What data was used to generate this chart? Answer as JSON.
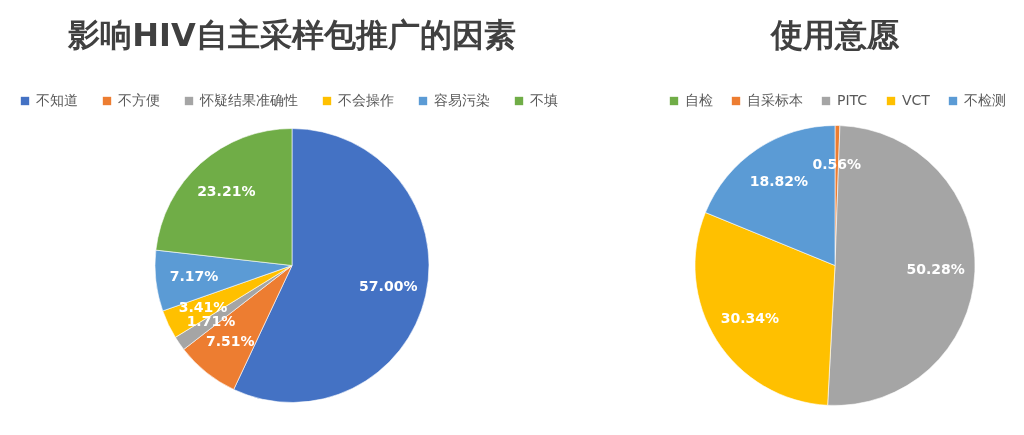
{
  "chart_data": [
    {
      "type": "pie",
      "title": "影响HIV自主采样包推广的因素",
      "categories": [
        "不知道",
        "不方便",
        "怀疑结果准确性",
        "不会操作",
        "容易污染",
        "不填"
      ],
      "values": [
        57.0,
        7.51,
        1.71,
        3.41,
        7.17,
        23.21
      ],
      "colors": [
        "#4472c4",
        "#ed7d31",
        "#a5a5a5",
        "#ffc000",
        "#5b9bd5",
        "#70ad47"
      ],
      "value_labels": [
        "57.00%",
        "7.51%",
        "1.71%",
        "3.41%",
        "7.17%",
        "23.21%"
      ],
      "legend": "top"
    },
    {
      "type": "pie",
      "title": "使用意愿",
      "categories": [
        "自检",
        "自采标本",
        "PITC",
        "VCT",
        "不检测"
      ],
      "values": [
        0,
        0.56,
        50.28,
        30.34,
        18.82
      ],
      "colors": [
        "#70ad47",
        "#ed7d31",
        "#a5a5a5",
        "#ffc000",
        "#5b9bd5"
      ],
      "value_labels": [
        null,
        "0.56%",
        "50.28%",
        "30.34%",
        "18.82%"
      ],
      "legend": "top"
    }
  ]
}
